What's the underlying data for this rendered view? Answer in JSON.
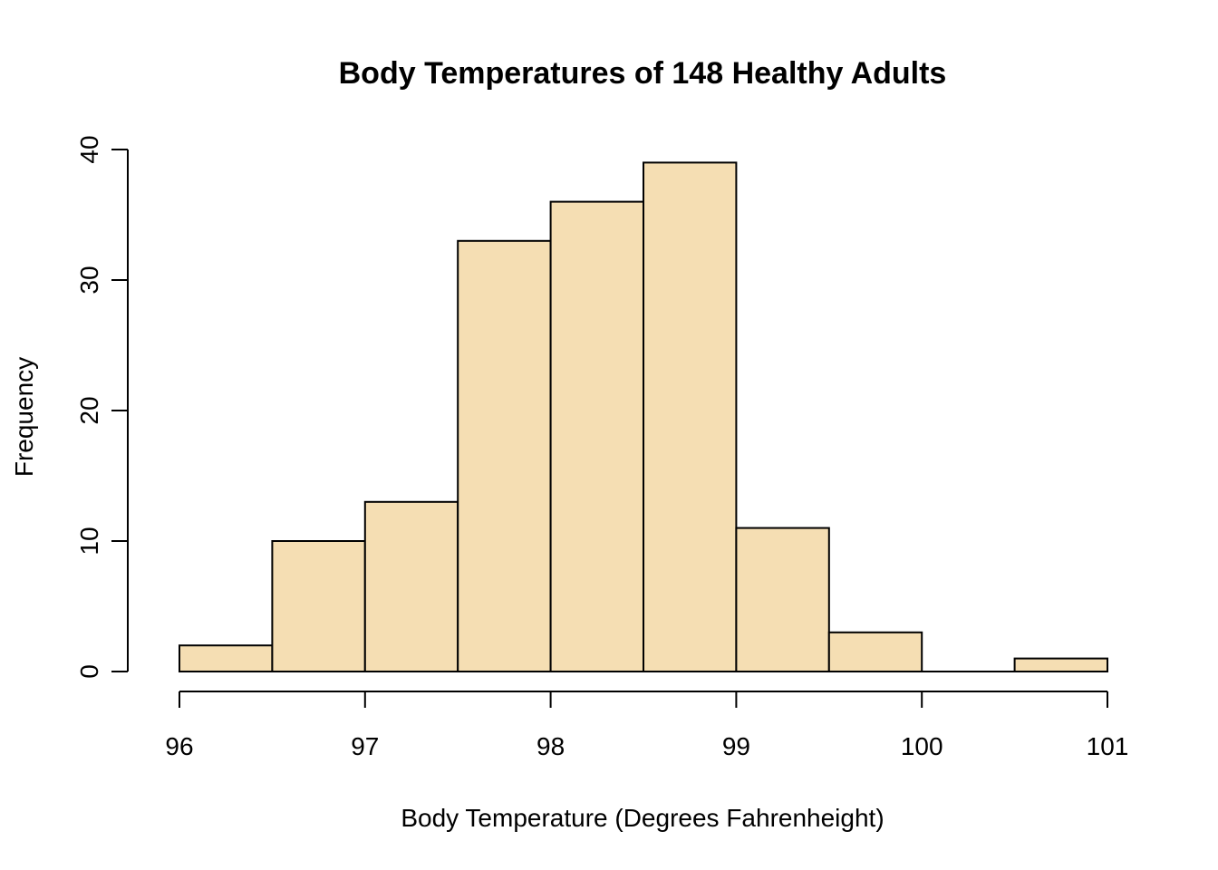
{
  "chart_data": {
    "type": "bar",
    "title": "Body Temperatures of 148 Healthy Adults",
    "xlabel": "Body Temperature (Degrees Fahrenheight)",
    "ylabel": "Frequency",
    "bin_edges": [
      96,
      96.5,
      97,
      97.5,
      98,
      98.5,
      99,
      99.5,
      100,
      100.5,
      101
    ],
    "values": [
      2,
      10,
      13,
      33,
      36,
      39,
      11,
      3,
      0,
      1
    ],
    "xlim": [
      96,
      101
    ],
    "ylim": [
      0,
      40
    ],
    "x_ticks": [
      96,
      97,
      98,
      99,
      100,
      101
    ],
    "x_tick_labels": [
      "96",
      "97",
      "98",
      "99",
      "100",
      "101"
    ],
    "y_ticks": [
      0,
      10,
      20,
      30,
      40
    ],
    "y_tick_labels": [
      "0",
      "10",
      "20",
      "30",
      "40"
    ],
    "grid": false,
    "bar_color": "#F5DEB3",
    "edge_color": "#000000"
  }
}
